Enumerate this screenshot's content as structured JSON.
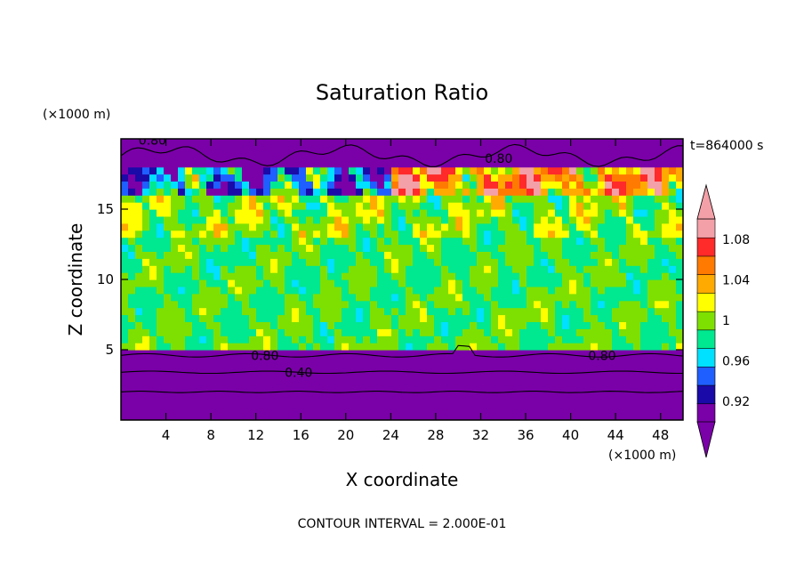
{
  "chart_data": {
    "type": "heatmap",
    "title": "Saturation Ratio",
    "xlabel": "X coordinate",
    "ylabel": "Z coordinate",
    "x_unit": "(×1000 m)",
    "y_unit": "(×1000 m)",
    "time_label": "t=864000 s",
    "footer": "CONTOUR INTERVAL = 2.000E-01",
    "xlim": [
      0,
      50
    ],
    "ylim": [
      0,
      20
    ],
    "x_ticks": [
      "4",
      "8",
      "12",
      "16",
      "20",
      "24",
      "28",
      "32",
      "36",
      "40",
      "44",
      "48"
    ],
    "y_ticks": [
      "5",
      "10",
      "15"
    ],
    "colorbar": {
      "levels": [
        0.9,
        0.92,
        0.94,
        0.96,
        0.98,
        1.0,
        1.02,
        1.04,
        1.06,
        1.08,
        1.1
      ],
      "tick_labels": [
        "0.92",
        "0.96",
        "1",
        "1.04",
        "1.08"
      ],
      "tick_values": [
        0.92,
        0.96,
        1.0,
        1.04,
        1.08
      ],
      "colors": [
        "#7a00a8",
        "#1a0aa8",
        "#1f5fff",
        "#00e0ff",
        "#00e890",
        "#7ee000",
        "#ffff00",
        "#ffaa00",
        "#ff7a00",
        "#ff2a2a",
        "#f4a0a8"
      ],
      "extend": "both"
    },
    "contour_labels": [
      {
        "text": "0.80",
        "x": 2.8,
        "y": 19.9
      },
      {
        "text": "0.80",
        "x": 33.6,
        "y": 18.6
      },
      {
        "text": "0.80",
        "x": 12.8,
        "y": 4.6
      },
      {
        "text": "0.40",
        "x": 15.8,
        "y": 3.4
      },
      {
        "text": "0.80",
        "x": 42.8,
        "y": 4.6
      }
    ]
  }
}
